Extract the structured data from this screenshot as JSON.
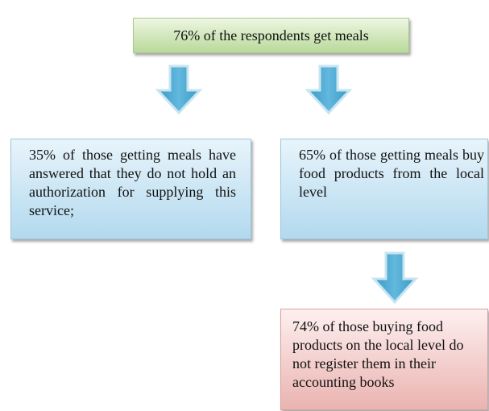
{
  "nodes": [
    {
      "label": "76% of the respondents get meals"
    },
    {
      "label": "35% of those getting meals have answered that they do not hold an authorization for supplying this service;"
    },
    {
      "label": "65% of those getting meals buy food products from the local level"
    },
    {
      "label": "74% of those buying food products on the local level do not register them in their accounting books"
    }
  ]
}
